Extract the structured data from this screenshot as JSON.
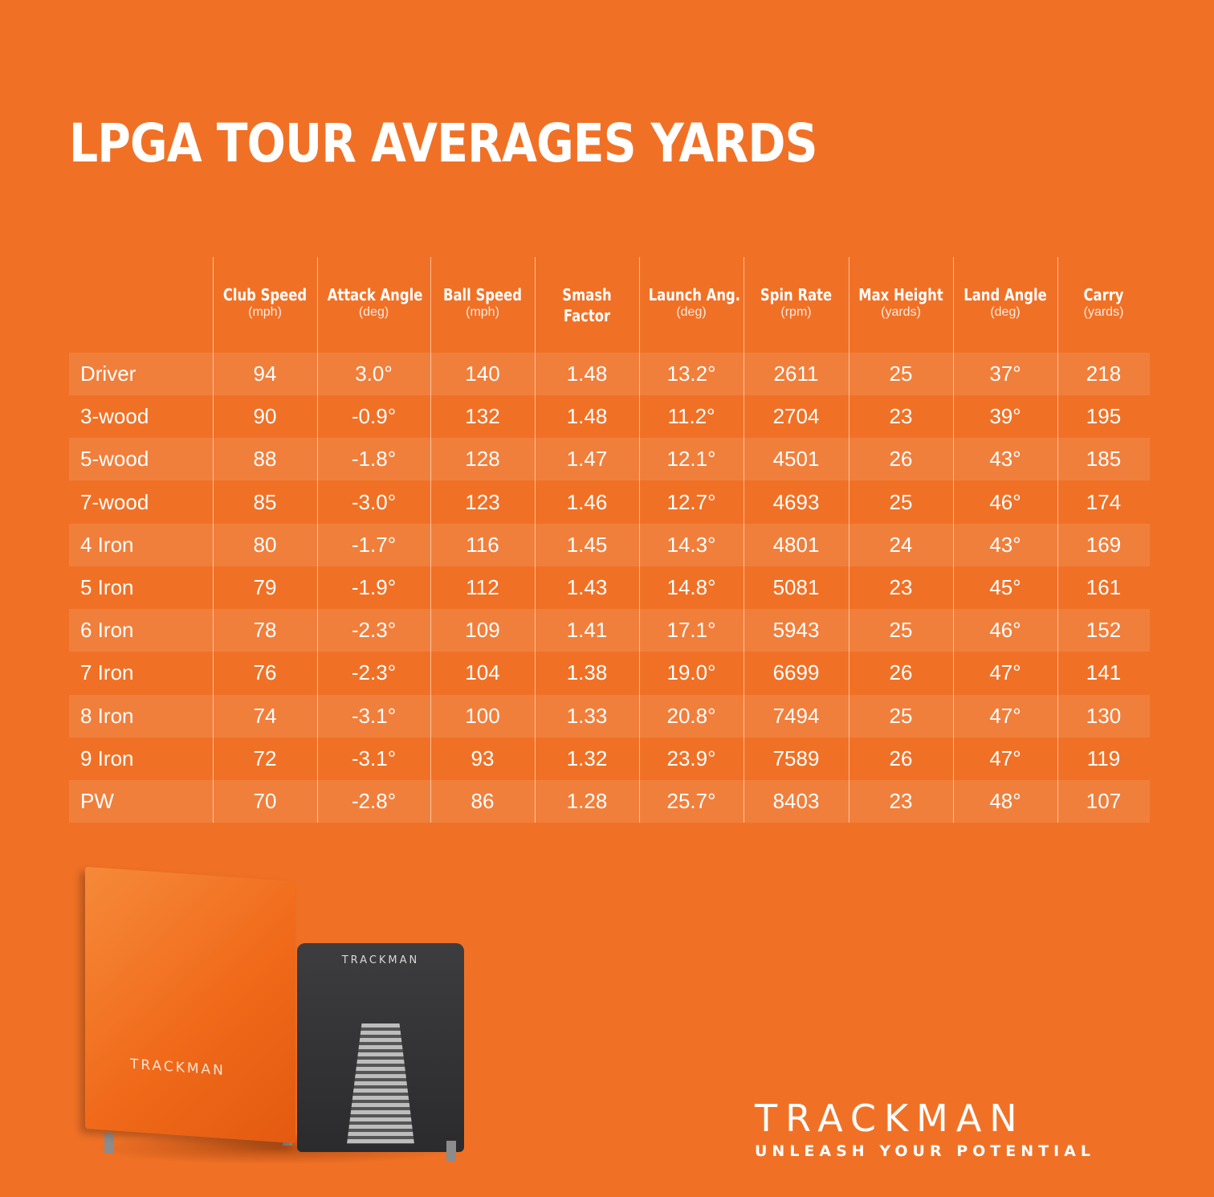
{
  "title": "LPGA TOUR AVERAGES YARDS",
  "brand": {
    "name": "TRACKMAN",
    "tagline": "UNLEASH YOUR POTENTIAL"
  },
  "device": {
    "orange_label": "TRACKMAN",
    "black_label": "TRACKMAN"
  },
  "colors": {
    "background": "#f07126",
    "text": "#ffffff"
  },
  "chart_data": {
    "type": "table",
    "title": "LPGA TOUR AVERAGES YARDS",
    "columns": [
      {
        "name": "Club Speed",
        "unit": "(mph)"
      },
      {
        "name": "Attack Angle",
        "unit": "(deg)"
      },
      {
        "name": "Ball Speed",
        "unit": "(mph)"
      },
      {
        "name": "Smash",
        "unit": "Factor"
      },
      {
        "name": "Launch Ang.",
        "unit": "(deg)"
      },
      {
        "name": "Spin Rate",
        "unit": "(rpm)"
      },
      {
        "name": "Max Height",
        "unit": "(yards)"
      },
      {
        "name": "Land Angle",
        "unit": "(deg)"
      },
      {
        "name": "Carry",
        "unit": "(yards)"
      }
    ],
    "rows": [
      {
        "club": "Driver",
        "values": [
          "94",
          "3.0°",
          "140",
          "1.48",
          "13.2°",
          "2611",
          "25",
          "37°",
          "218"
        ]
      },
      {
        "club": "3-wood",
        "values": [
          "90",
          "-0.9°",
          "132",
          "1.48",
          "11.2°",
          "2704",
          "23",
          "39°",
          "195"
        ]
      },
      {
        "club": "5-wood",
        "values": [
          "88",
          "-1.8°",
          "128",
          "1.47",
          "12.1°",
          "4501",
          "26",
          "43°",
          "185"
        ]
      },
      {
        "club": "7-wood",
        "values": [
          "85",
          "-3.0°",
          "123",
          "1.46",
          "12.7°",
          "4693",
          "25",
          "46°",
          "174"
        ]
      },
      {
        "club": "4 Iron",
        "values": [
          "80",
          "-1.7°",
          "116",
          "1.45",
          "14.3°",
          "4801",
          "24",
          "43°",
          "169"
        ]
      },
      {
        "club": "5 Iron",
        "values": [
          "79",
          "-1.9°",
          "112",
          "1.43",
          "14.8°",
          "5081",
          "23",
          "45°",
          "161"
        ]
      },
      {
        "club": "6 Iron",
        "values": [
          "78",
          "-2.3°",
          "109",
          "1.41",
          "17.1°",
          "5943",
          "25",
          "46°",
          "152"
        ]
      },
      {
        "club": "7 Iron",
        "values": [
          "76",
          "-2.3°",
          "104",
          "1.38",
          "19.0°",
          "6699",
          "26",
          "47°",
          "141"
        ]
      },
      {
        "club": "8 Iron",
        "values": [
          "74",
          "-3.1°",
          "100",
          "1.33",
          "20.8°",
          "7494",
          "25",
          "47°",
          "130"
        ]
      },
      {
        "club": "9 Iron",
        "values": [
          "72",
          "-3.1°",
          "93",
          "1.32",
          "23.9°",
          "7589",
          "26",
          "47°",
          "119"
        ]
      },
      {
        "club": "PW",
        "values": [
          "70",
          "-2.8°",
          "86",
          "1.28",
          "25.7°",
          "8403",
          "23",
          "48°",
          "107"
        ]
      }
    ]
  }
}
